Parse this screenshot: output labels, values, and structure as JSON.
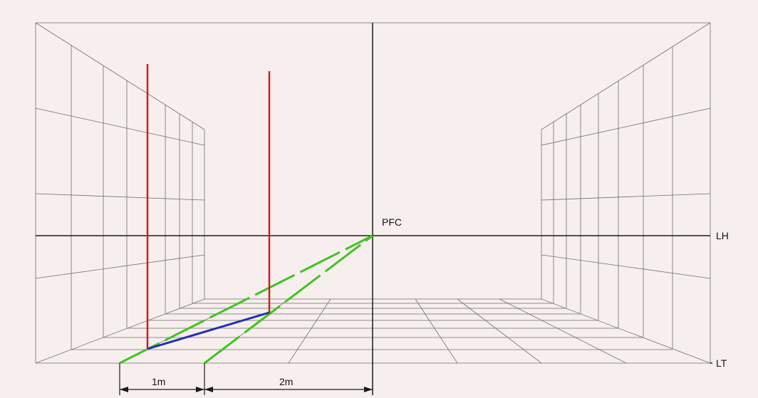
{
  "labels": {
    "vanishing_point": "PFC",
    "horizon_line": "LH",
    "ground_line": "LT",
    "dim_left": "1m",
    "dim_right": "2m"
  },
  "colors": {
    "background": "#f7efee",
    "grid": "#6e6e6e",
    "axes": "#1a1a1a",
    "posts": "#cc1f1f",
    "projection": "#3ec41e",
    "segment": "#1f2fb8",
    "text": "#111111"
  }
}
